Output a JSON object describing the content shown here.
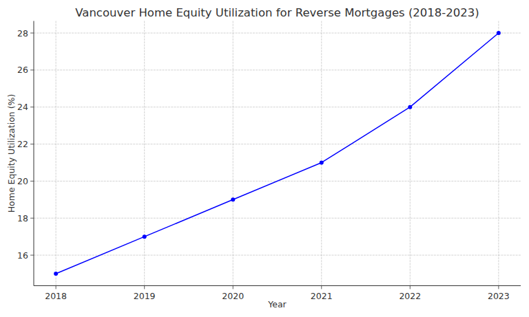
{
  "chart_data": {
    "type": "line",
    "title": "Vancouver Home Equity Utilization for Reverse Mortgages (2018-2023)",
    "x_label": "Year",
    "y_label": "Home Equity Utilization (%)",
    "x": [
      2018,
      2019,
      2020,
      2021,
      2022,
      2023
    ],
    "values": [
      15,
      17,
      19,
      21,
      24,
      28
    ],
    "color": "#0000ff",
    "marker": "circle",
    "line_style": "solid",
    "xlim": [
      2017.75,
      2023.25
    ],
    "xticks": [
      2018,
      2019,
      2020,
      2021,
      2022,
      2023
    ],
    "ylim": [
      14.35,
      28.65
    ],
    "yticks": [
      16,
      18,
      20,
      22,
      24,
      26,
      28
    ],
    "grid": true
  }
}
